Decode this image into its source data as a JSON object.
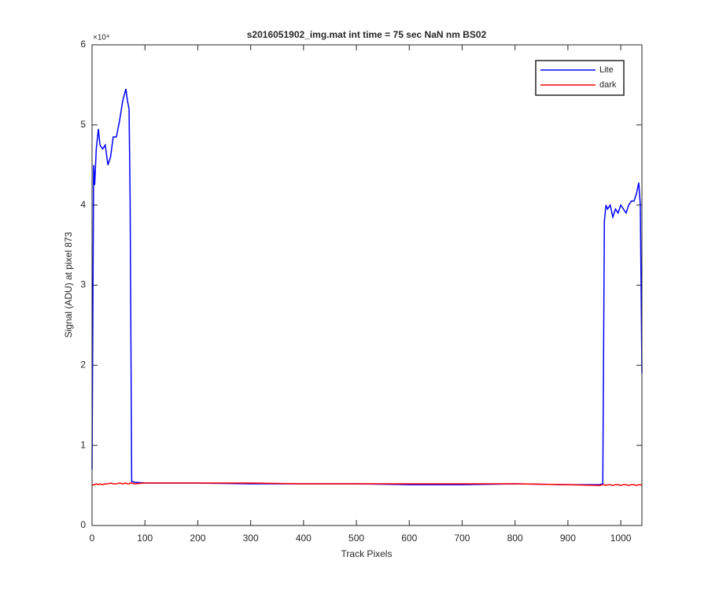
{
  "chart_data": {
    "type": "line",
    "title": "s2016051902_img.mat int time = 75 sec  NaN nm BS02",
    "x_label": "Track Pixels",
    "y_label": "Signal (ADU) at pixel 873",
    "y_exponent_label": "×10⁴",
    "x": [
      0,
      3,
      5,
      8,
      12,
      15,
      20,
      25,
      30,
      35,
      40,
      46,
      52,
      58,
      64,
      67,
      70,
      72,
      75,
      80,
      100,
      200,
      300,
      400,
      500,
      600,
      700,
      800,
      900,
      960,
      966,
      969,
      972,
      975,
      980,
      985,
      990,
      995,
      1000,
      1005,
      1010,
      1015,
      1020,
      1025,
      1030,
      1034,
      1037,
      1040
    ],
    "series": [
      {
        "name": "Lite",
        "color": "#0000ff",
        "values": [
          7000,
          45000,
          42500,
          47000,
          49500,
          47500,
          47000,
          47500,
          45000,
          46000,
          48500,
          48500,
          50500,
          53000,
          54500,
          53000,
          52000,
          41000,
          5500,
          5400,
          5300,
          5300,
          5200,
          5200,
          5200,
          5100,
          5100,
          5200,
          5100,
          5100,
          5200,
          38000,
          40000,
          39500,
          40000,
          38500,
          39500,
          39000,
          40000,
          39500,
          39000,
          40000,
          40500,
          40500,
          41500,
          42800,
          40000,
          19000
        ]
      },
      {
        "name": "dark",
        "color": "#ff0000",
        "values": [
          5000,
          5100,
          5100,
          5200,
          5100,
          5200,
          5100,
          5200,
          5200,
          5300,
          5200,
          5200,
          5300,
          5200,
          5300,
          5200,
          5200,
          5300,
          5300,
          5200,
          5300,
          5300,
          5300,
          5200,
          5200,
          5200,
          5200,
          5200,
          5100,
          5000,
          5100,
          5100,
          5000,
          5100,
          5100,
          5000,
          5100,
          5100,
          5000,
          5100,
          5100,
          5000,
          5100,
          5100,
          5000,
          5100,
          5100,
          5000
        ]
      }
    ],
    "xlim": [
      0,
      1040
    ],
    "ylim": [
      0,
      60000
    ],
    "xticks": [
      0,
      100,
      200,
      300,
      400,
      500,
      600,
      700,
      800,
      900,
      1000
    ],
    "yticks": [
      {
        "value": 0,
        "label": "0"
      },
      {
        "value": 10000,
        "label": "1"
      },
      {
        "value": 20000,
        "label": "2"
      },
      {
        "value": 30000,
        "label": "3"
      },
      {
        "value": 40000,
        "label": "4"
      },
      {
        "value": 50000,
        "label": "5"
      },
      {
        "value": 60000,
        "label": "6"
      }
    ],
    "legend": "upper right"
  }
}
